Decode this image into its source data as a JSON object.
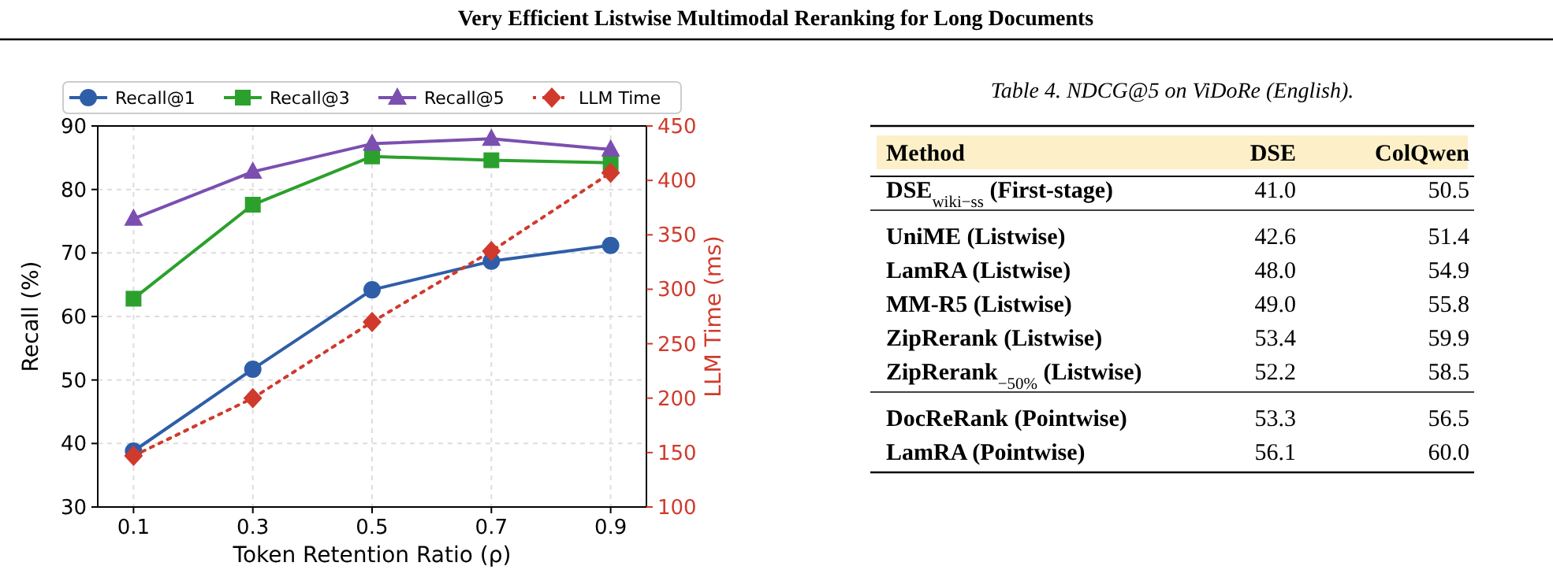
{
  "chart_data": [
    {
      "type": "line",
      "annotations": [
        "Very Efficient Listwise Multimodal Reranking for Long Documents"
      ],
      "xlabel": "Token Retention Ratio (ρ)",
      "ylabel": "Recall (%)",
      "y2label": "LLM Time (ms)",
      "x": [
        0.1,
        0.3,
        0.5,
        0.7,
        0.9
      ],
      "xlim": [
        0.04,
        0.96
      ],
      "xticks": [
        0.1,
        0.3,
        0.5,
        0.7,
        0.9
      ],
      "ylim": [
        30,
        90
      ],
      "yticks": [
        30,
        40,
        50,
        60,
        70,
        80,
        90
      ],
      "y2lim": [
        100,
        450
      ],
      "y2ticks": [
        100,
        150,
        200,
        250,
        300,
        350,
        400,
        450
      ],
      "grid": true,
      "legend": "top",
      "series": [
        {
          "name": "Recall@1",
          "color": "#2f5ea8",
          "marker": "circle",
          "line_style": "solid",
          "values": [
            38.8,
            51.7,
            64.2,
            68.7,
            71.2
          ]
        },
        {
          "name": "Recall@3",
          "color": "#2ca02c",
          "marker": "square",
          "line_style": "solid",
          "values": [
            62.8,
            77.6,
            85.2,
            84.6,
            84.2
          ]
        },
        {
          "name": "Recall@5",
          "color": "#7b4fb0",
          "marker": "triangle",
          "line_style": "solid",
          "values": [
            75.4,
            82.8,
            87.2,
            88.0,
            86.3
          ]
        },
        {
          "name": "LLM Time",
          "color": "#d03a2c",
          "marker": "diamond",
          "line_style": "dotted",
          "axis": "y2",
          "values": [
            147,
            200,
            270,
            335,
            407
          ]
        }
      ]
    },
    {
      "type": "other",
      "title": "Table 4. NDCG@5 on ViDoRe (English).",
      "ylabel": "Method",
      "categories": [
        "DSE$_{wiki−ss}$ (First-stage)",
        "UniME (Listwise)",
        "LamRA (Listwise)",
        "MM-R5 (Listwise)",
        "ZipRerank (Listwise)",
        "ZipRerank$_{−50%}$ (Listwise)",
        "DocReRank (Pointwise)",
        "LamRA (Pointwise)"
      ],
      "series": [
        {
          "name": "DSE",
          "values": [
            41.0,
            42.6,
            48.0,
            49.0,
            53.4,
            52.2,
            53.3,
            56.1
          ],
          "value_labels": [
            "41.0",
            "42.6",
            "48.0",
            "49.0",
            "53.4",
            "52.2",
            "53.3",
            "56.1"
          ]
        },
        {
          "name": "ColQwen",
          "values": [
            50.5,
            51.4,
            54.9,
            55.8,
            59.9,
            58.5,
            56.5,
            60.0
          ],
          "value_labels": [
            "50.5",
            "51.4",
            "54.9",
            "55.8",
            "59.9",
            "58.5",
            "56.5",
            "60.0"
          ]
        }
      ]
    }
  ]
}
